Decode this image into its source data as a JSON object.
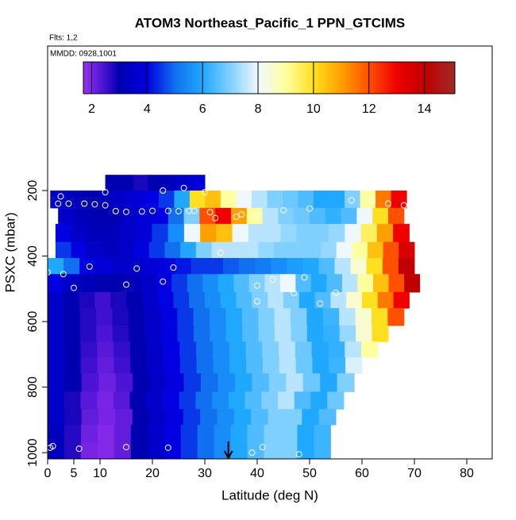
{
  "chart_data": {
    "type": "heatmap",
    "title": "ATOM3 Northeast_Pacific_1 PPN_GTCIMS",
    "subtitle": "Flts: 1,2",
    "annotation": "MMDD: 0928,1001",
    "x_label": "Latitude (deg N)",
    "y_label": "PSXC (mbar)",
    "xlim": [
      0,
      84.85
    ],
    "xticks": [
      0,
      5,
      10,
      20,
      30,
      40,
      50,
      60,
      70,
      80
    ],
    "ylim": [
      1019,
      -241
    ],
    "yticks": [
      200,
      400,
      600,
      800,
      1000
    ],
    "colorbar_lim": [
      1.7,
      15.1
    ],
    "colorbar_ticks": [
      2,
      4,
      6,
      8,
      10,
      12,
      14
    ],
    "colorscale": [
      [
        1.7,
        "#9a30f0"
      ],
      [
        2.5,
        "#4010d0"
      ],
      [
        3,
        "#0000b0"
      ],
      [
        4,
        "#0000e0"
      ],
      [
        5,
        "#1070f0"
      ],
      [
        6,
        "#20a8ff"
      ],
      [
        7,
        "#80d0ff"
      ],
      [
        8,
        "#f0f8ff"
      ],
      [
        9,
        "#ffffa0"
      ],
      [
        10,
        "#ffe020"
      ],
      [
        11,
        "#ffa000"
      ],
      [
        12,
        "#ff5000"
      ],
      [
        13,
        "#f00000"
      ],
      [
        14,
        "#c00000"
      ],
      [
        15.1,
        "#a02828"
      ]
    ],
    "rows": [
      {
        "p": [
          152,
          200
        ],
        "lat": [
          11,
          30
        ],
        "values": [
          3,
          3,
          2.8,
          3,
          3.2,
          3.5,
          3.8
        ]
      },
      {
        "p": [
          200,
          253
        ],
        "lat": [
          0.5,
          68.5
        ],
        "values": [
          3.5,
          3.2,
          3,
          3.2,
          3.5,
          3.8,
          4,
          4.5,
          6,
          10,
          10.5,
          9,
          8,
          7.5,
          7,
          6.8,
          6.5,
          6,
          6,
          7,
          9,
          11.5,
          13
        ]
      },
      {
        "p": [
          253,
          302
        ],
        "lat": [
          2,
          68
        ],
        "values": [
          3.5,
          3.2,
          3,
          3,
          3.5,
          3.8,
          4,
          5,
          7,
          12,
          13,
          11,
          9,
          7.5,
          7,
          6.8,
          6.5,
          6.2,
          6.5,
          8,
          10,
          12
        ]
      },
      {
        "p": [
          302,
          357
        ],
        "lat": [
          1.5,
          69
        ],
        "values": [
          4,
          3.5,
          3.2,
          3.2,
          3.5,
          3.8,
          4.5,
          5.5,
          8,
          11,
          10.5,
          8,
          7.5,
          7.5,
          7.2,
          7,
          7,
          7.2,
          8,
          9.5,
          11,
          13
        ]
      },
      {
        "p": [
          357,
          406
        ],
        "lat": [
          1.5,
          70
        ],
        "values": [
          4.5,
          4,
          3.5,
          3.3,
          3.5,
          4,
          4.5,
          5,
          6,
          7,
          7.5,
          7.5,
          7.5,
          7.2,
          7,
          7,
          7,
          7.2,
          8,
          9,
          10.5,
          12,
          13.5
        ]
      },
      {
        "p": [
          406,
          455
        ],
        "lat": [
          0,
          70
        ],
        "values": [
          6,
          5,
          4,
          3.8,
          3.5,
          3.5,
          3.8,
          4,
          4.2,
          4.5,
          4.5,
          4.8,
          5,
          5.2,
          5.5,
          5.8,
          6,
          6.5,
          7.5,
          8.5,
          10,
          12,
          14
        ]
      },
      {
        "p": [
          455,
          510
        ],
        "lat": [
          0,
          71
        ],
        "values": [
          4,
          3.5,
          3.2,
          3,
          3,
          3.2,
          3.5,
          4,
          4.5,
          5,
          5.5,
          6,
          6.5,
          7,
          7.5,
          8,
          6.5,
          6,
          6.5,
          7.5,
          9,
          10.5,
          12,
          14
        ]
      },
      {
        "p": [
          510,
          559
        ],
        "lat": [
          0,
          69
        ],
        "values": [
          3.5,
          3,
          2.8,
          2.5,
          2.8,
          3,
          3.5,
          4,
          4.5,
          5,
          5.5,
          6,
          6.5,
          7,
          7.5,
          7,
          6,
          6.5,
          7.5,
          8.5,
          10,
          11.5,
          13
        ]
      },
      {
        "p": [
          559,
          612
        ],
        "lat": [
          0,
          68
        ],
        "values": [
          3.5,
          3,
          2.7,
          2.5,
          2.8,
          3,
          3.5,
          4,
          4.5,
          5,
          5.5,
          6,
          6.5,
          7,
          7.5,
          7,
          6,
          6.3,
          7.5,
          8.5,
          10,
          12
        ]
      },
      {
        "p": [
          612,
          661
        ],
        "lat": [
          0,
          65
        ],
        "values": [
          3.5,
          3,
          2.7,
          2.4,
          2.7,
          3,
          3.5,
          4,
          4.5,
          5,
          5.5,
          6,
          6.5,
          7,
          7.5,
          7,
          6,
          6.2,
          7.2,
          8.5,
          10
        ]
      },
      {
        "p": [
          661,
          709
        ],
        "lat": [
          0,
          63
        ],
        "values": [
          3.5,
          3,
          2.6,
          2.3,
          2.6,
          3,
          3.5,
          4,
          4.5,
          5,
          5.5,
          6,
          6.5,
          7,
          7.5,
          6.8,
          6,
          6.2,
          7.5,
          9
        ]
      },
      {
        "p": [
          709,
          758
        ],
        "lat": [
          0,
          60
        ],
        "values": [
          3.5,
          3,
          2.5,
          2.2,
          2.5,
          3,
          3.5,
          4,
          4.5,
          5,
          5.5,
          6,
          6.5,
          7,
          7.5,
          6.8,
          6,
          6.3,
          7.8
        ]
      },
      {
        "p": [
          758,
          814
        ],
        "lat": [
          0,
          58.5
        ],
        "values": [
          3.5,
          3,
          2.4,
          2.1,
          2.4,
          3,
          3.5,
          4,
          4.5,
          5,
          5.5,
          6,
          6.5,
          7,
          7.5,
          6.8,
          6,
          7
        ]
      },
      {
        "p": [
          814,
          867
        ],
        "lat": [
          0,
          56.5
        ],
        "values": [
          3.5,
          2.8,
          2.3,
          2,
          2.3,
          3,
          3.5,
          4,
          4.5,
          5,
          5.5,
          6,
          6.5,
          7,
          7.5,
          6.5,
          6,
          6.8
        ]
      },
      {
        "p": [
          867,
          915
        ],
        "lat": [
          0,
          55
        ],
        "values": [
          3.5,
          2.8,
          2.2,
          2,
          2.2,
          3,
          3.5,
          4,
          4.5,
          5,
          5.5,
          6,
          6.5,
          7,
          7,
          6,
          6.5
        ]
      },
      {
        "p": [
          915,
          968
        ],
        "lat": [
          0,
          54
        ],
        "values": [
          3.3,
          2.7,
          2.1,
          1.9,
          2.2,
          3,
          3.5,
          4,
          4.5,
          5,
          5.5,
          6,
          6.5,
          7,
          7,
          6,
          6.3
        ]
      },
      {
        "p": [
          968,
          1019
        ],
        "lat": [
          0,
          54
        ],
        "values": [
          3.3,
          2.7,
          2,
          1.9,
          2.2,
          3,
          3.5,
          4,
          4.5,
          5,
          5.5,
          6,
          6.5,
          7,
          7,
          6,
          6.3
        ]
      }
    ],
    "points": {
      "x": [
        2.5,
        11,
        22,
        26,
        30,
        2,
        4,
        7,
        9,
        11,
        13,
        15,
        18,
        20,
        23,
        25,
        27,
        28,
        31,
        32,
        36,
        37,
        40,
        45,
        50,
        58,
        62,
        65,
        68,
        0,
        3,
        8,
        15,
        17,
        22,
        24,
        33,
        40,
        43,
        47,
        49,
        52,
        55,
        40,
        5,
        1,
        0.5,
        6,
        15,
        23,
        39,
        41,
        48
      ],
      "y": [
        218,
        205,
        200,
        192,
        205,
        240,
        240,
        240,
        242,
        245,
        263,
        265,
        264,
        262,
        262,
        263,
        262,
        262,
        266,
        284,
        280,
        273,
        276,
        260,
        255,
        230,
        230,
        240,
        245,
        450,
        455,
        432,
        487,
        438,
        478,
        435,
        390,
        490,
        472,
        513,
        465,
        545,
        512,
        538,
        497,
        980,
        985,
        988,
        983,
        985,
        1000,
        983,
        1005
      ]
    },
    "arrow_lat": 34.5
  }
}
